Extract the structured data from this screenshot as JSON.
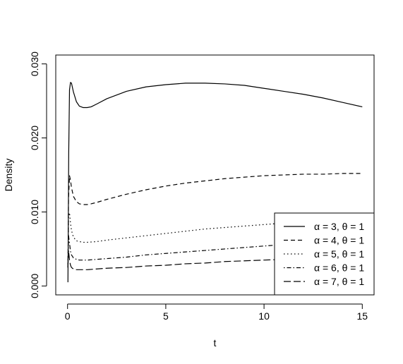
{
  "chart_data": {
    "type": "line",
    "title": "",
    "xlabel": "t",
    "ylabel": "Density",
    "xlim": [
      -0.6,
      15.6
    ],
    "ylim": [
      -0.0012,
      0.0312
    ],
    "x_ticks": [
      0,
      5,
      10,
      15
    ],
    "x_tick_labels": [
      "0",
      "5",
      "10",
      "15"
    ],
    "y_ticks": [
      0.0,
      0.01,
      0.02,
      0.03
    ],
    "y_tick_labels": [
      "0.000",
      "0.010",
      "0.020",
      "0.030"
    ],
    "grid": false,
    "legend_position": "bottom-right",
    "series": [
      {
        "name": "α = 3, θ = 1",
        "line_style": "solid",
        "x": [
          0.02,
          0.06,
          0.1,
          0.15,
          0.2,
          0.3,
          0.45,
          0.6,
          0.8,
          1.0,
          1.2,
          1.5,
          2,
          3,
          4,
          5,
          6,
          7,
          8,
          9,
          10,
          11,
          12,
          13,
          14,
          15
        ],
        "y": [
          0.0005,
          0.018,
          0.0265,
          0.0275,
          0.0274,
          0.0262,
          0.0249,
          0.0243,
          0.0241,
          0.0241,
          0.0242,
          0.0246,
          0.0253,
          0.0263,
          0.0269,
          0.0272,
          0.0274,
          0.0274,
          0.0273,
          0.0271,
          0.0267,
          0.0263,
          0.0259,
          0.0254,
          0.0248,
          0.0242
        ]
      },
      {
        "name": "α = 4, θ = 1",
        "line_style": "dashed",
        "x": [
          0.02,
          0.05,
          0.1,
          0.15,
          0.2,
          0.3,
          0.45,
          0.6,
          0.8,
          1.0,
          1.2,
          1.5,
          2,
          3,
          4,
          5,
          6,
          7,
          8,
          9,
          10,
          11,
          12,
          13,
          14,
          15
        ],
        "y": [
          0.0025,
          0.0118,
          0.0149,
          0.0143,
          0.0133,
          0.0121,
          0.0114,
          0.0111,
          0.011,
          0.011,
          0.0111,
          0.0113,
          0.0117,
          0.0124,
          0.013,
          0.0135,
          0.0139,
          0.0142,
          0.0145,
          0.0147,
          0.0149,
          0.015,
          0.0151,
          0.0151,
          0.0152,
          0.0152
        ]
      },
      {
        "name": "α = 5, θ = 1",
        "line_style": "dotted",
        "x": [
          0.02,
          0.05,
          0.1,
          0.15,
          0.2,
          0.3,
          0.45,
          0.6,
          0.8,
          1.0,
          1.5,
          2,
          3,
          4,
          5,
          6,
          7,
          8,
          9,
          10,
          11,
          12,
          13,
          14,
          15
        ],
        "y": [
          0.0025,
          0.0095,
          0.0099,
          0.0085,
          0.0075,
          0.0066,
          0.0061,
          0.006,
          0.0059,
          0.0059,
          0.006,
          0.0062,
          0.0065,
          0.0068,
          0.0071,
          0.0074,
          0.0077,
          0.0079,
          0.0081,
          0.0083,
          0.0085,
          0.0087,
          0.0089,
          0.009,
          0.0091
        ]
      },
      {
        "name": "α = 6, θ = 1",
        "line_style": "dotdash",
        "x": [
          0.02,
          0.05,
          0.1,
          0.15,
          0.2,
          0.3,
          0.45,
          0.6,
          0.8,
          1.0,
          1.5,
          2,
          3,
          4,
          5,
          6,
          7,
          8,
          9,
          10,
          11,
          12,
          13,
          14,
          15
        ],
        "y": [
          0.0025,
          0.0068,
          0.0058,
          0.0047,
          0.0042,
          0.0038,
          0.0036,
          0.0035,
          0.0035,
          0.0035,
          0.0036,
          0.0037,
          0.0039,
          0.0042,
          0.0044,
          0.0046,
          0.0048,
          0.005,
          0.0052,
          0.0054,
          0.0056,
          0.0058,
          0.006,
          0.0062,
          0.0064
        ]
      },
      {
        "name": "α = 7, θ = 1",
        "line_style": "longdash",
        "x": [
          0.02,
          0.05,
          0.1,
          0.15,
          0.2,
          0.3,
          0.45,
          0.6,
          0.8,
          1.0,
          1.5,
          2,
          3,
          4,
          5,
          6,
          7,
          8,
          9,
          10,
          11,
          12,
          13,
          14,
          15
        ],
        "y": [
          0.0025,
          0.0048,
          0.0035,
          0.0028,
          0.0025,
          0.0023,
          0.0022,
          0.0022,
          0.0022,
          0.0022,
          0.0023,
          0.0024,
          0.0025,
          0.0027,
          0.0028,
          0.003,
          0.0031,
          0.0033,
          0.0034,
          0.0035,
          0.0036,
          0.0038,
          0.0039,
          0.004,
          0.0041
        ]
      }
    ]
  }
}
